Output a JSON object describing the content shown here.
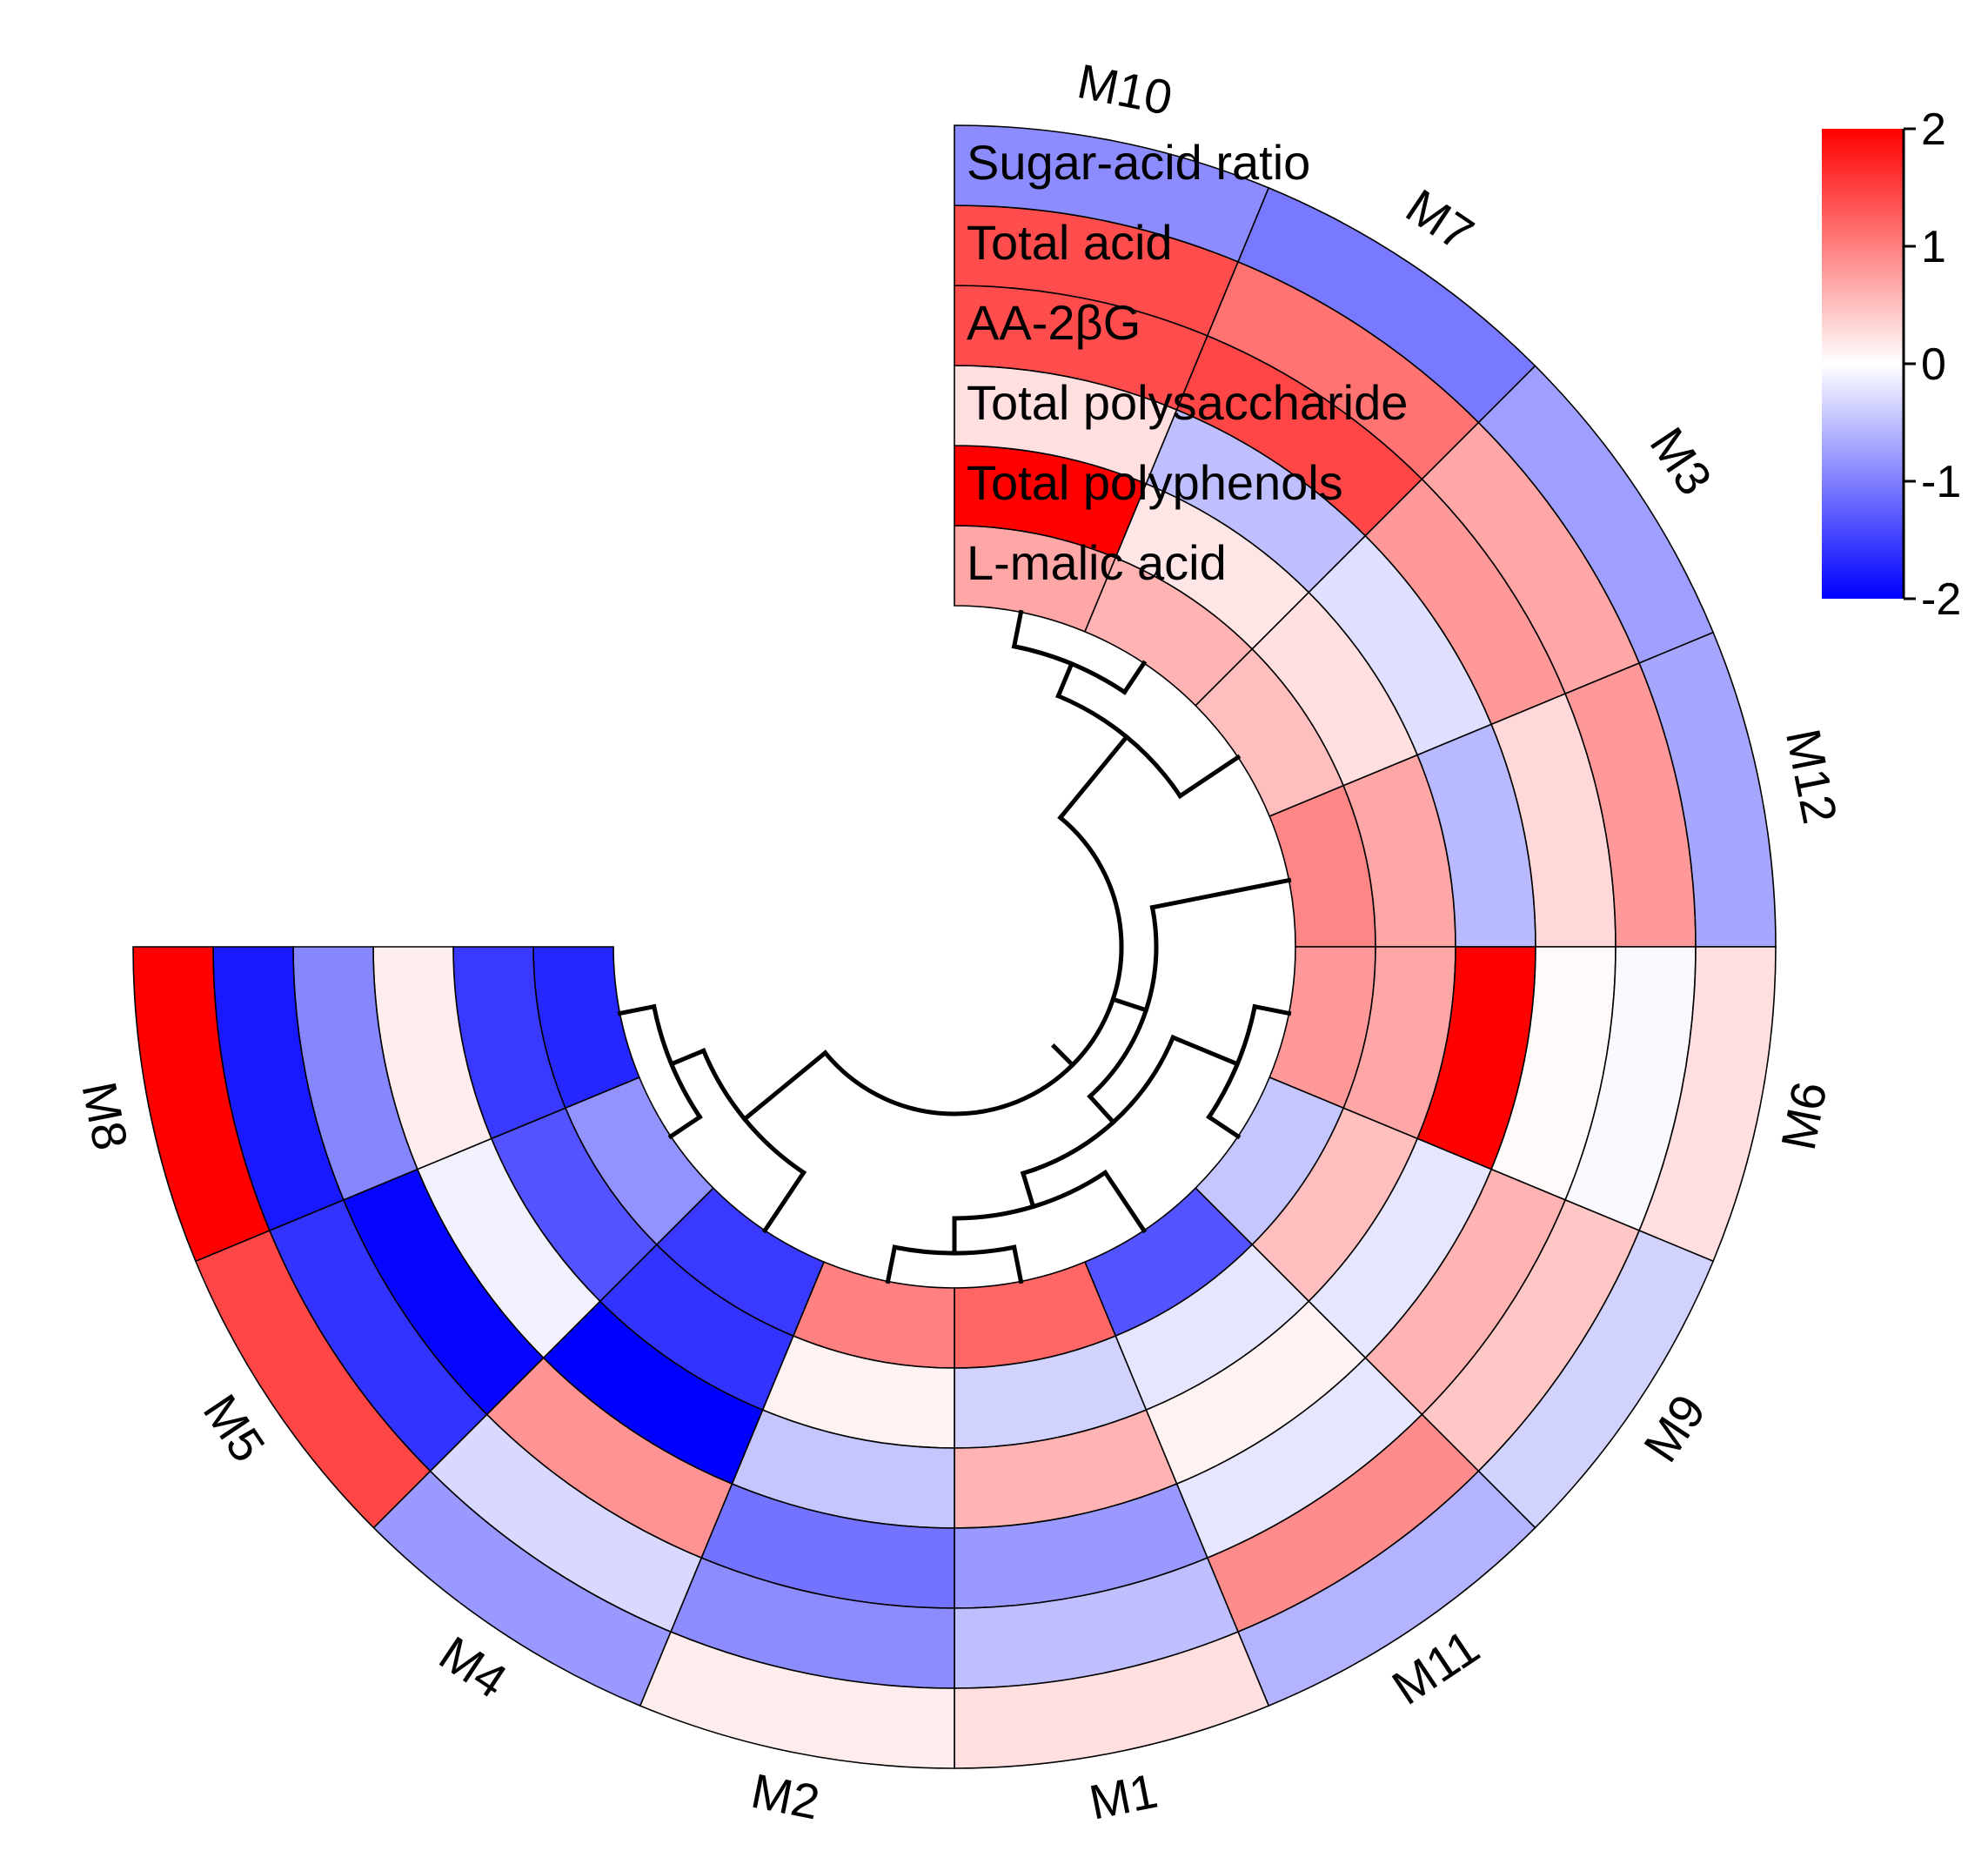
{
  "chart_data": {
    "type": "heatmap",
    "layout": "circular",
    "title": "",
    "rows_inner_to_outer": [
      "L-malic acid",
      "Total polyphenols",
      "Total polysaccharide",
      "AA-2βG",
      "Total acid",
      "Sugar-acid ratio"
    ],
    "samples_clockwise_from_top": [
      "M10",
      "M7",
      "M3",
      "M12",
      "M6",
      "M9",
      "M11",
      "M1",
      "M2",
      "M4",
      "M5",
      "M8"
    ],
    "values": {
      "M10": [
        0.7,
        2.0,
        0.25,
        1.4,
        1.4,
        -0.9
      ],
      "M7": [
        0.6,
        0.2,
        -0.5,
        1.45,
        1.1,
        -1.05
      ],
      "M3": [
        0.5,
        0.25,
        -0.25,
        0.8,
        0.7,
        -0.75
      ],
      "M12": [
        0.95,
        0.7,
        -0.55,
        0.3,
        0.8,
        -0.7
      ],
      "M6": [
        0.8,
        0.7,
        2.0,
        0.05,
        -0.05,
        0.25
      ],
      "M9": [
        -0.45,
        0.5,
        -0.2,
        0.6,
        0.45,
        -0.35
      ],
      "M11": [
        -1.35,
        -0.2,
        0.1,
        -0.2,
        0.9,
        -0.6
      ],
      "M1": [
        1.2,
        -0.35,
        0.6,
        -0.8,
        -0.5,
        0.25
      ],
      "M2": [
        1.0,
        0.1,
        -0.45,
        -1.1,
        -0.9,
        0.15
      ],
      "M4": [
        -1.55,
        -1.6,
        -2.0,
        0.85,
        -0.3,
        -0.8
      ],
      "M5": [
        -0.85,
        -1.35,
        -0.1,
        -1.95,
        -1.6,
        1.45
      ],
      "M8": [
        -1.7,
        -1.55,
        0.15,
        -0.95,
        -1.8,
        2.0
      ]
    },
    "color_scale": {
      "min": -2,
      "max": 2,
      "low": "#0000ff",
      "mid": "#ffffff",
      "high": "#ff0000"
    },
    "colorbar_ticks": [
      "2",
      "1",
      "0",
      "-1",
      "-2"
    ],
    "dendrogram": [
      [
        [
          "M10",
          "M7"
        ],
        "M3"
      ],
      [
        "M12",
        [
          [
            "M6",
            "M9"
          ],
          [
            "M11",
            [
              "M1",
              "M2"
            ]
          ]
        ]
      ],
      [
        "M4",
        [
          "M5",
          "M8"
        ]
      ]
    ]
  }
}
